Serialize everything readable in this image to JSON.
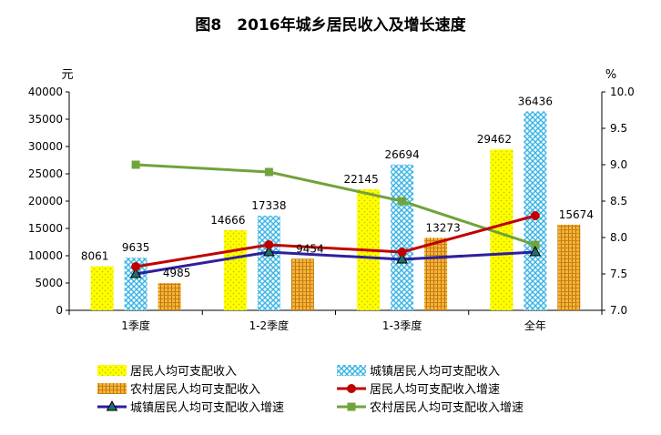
{
  "chart_data": {
    "type": "bar",
    "title": "图8　2016年城乡居民收入及增长速度",
    "ylabel_left": "元",
    "ylabel_right": "%",
    "categories": [
      "1季度",
      "1-2季度",
      "1-3季度",
      "全年"
    ],
    "ylim_left": [
      0,
      40000
    ],
    "yticks_left": [
      "0",
      "5000",
      "10000",
      "15000",
      "20000",
      "25000",
      "30000",
      "35000",
      "40000"
    ],
    "ylim_right": [
      7.0,
      10.0
    ],
    "yticks_right": [
      "7.0",
      "7.5",
      "8.0",
      "8.5",
      "9.0",
      "9.5",
      "10.0"
    ],
    "bar_series": [
      {
        "name": "居民人均可支配收入",
        "values": [
          8061,
          14666,
          22145,
          29462
        ],
        "labels": [
          "8061",
          "14666",
          "22145",
          "29462"
        ],
        "color": "#ffff00",
        "pattern_color": "#c8c800"
      },
      {
        "name": "城镇居民人均可支配收入",
        "values": [
          9635,
          17338,
          26694,
          36436
        ],
        "labels": [
          "9635",
          "17338",
          "26694",
          "36436"
        ],
        "color": "#ffffff",
        "pattern_color": "#39b4e4"
      },
      {
        "name": "农村居民人均可支配收入",
        "values": [
          4985,
          9454,
          13273,
          15674
        ],
        "labels": [
          "4985",
          "9454",
          "13273",
          "15674"
        ],
        "color": "#f7b43a",
        "pattern_color": "#b8760f"
      }
    ],
    "line_series": [
      {
        "name": "居民人均可支配收入增速",
        "values": [
          7.6,
          7.9,
          7.8,
          8.3
        ],
        "color": "#c00000",
        "marker": "circle"
      },
      {
        "name": "城镇居民人均可支配收入增速",
        "values": [
          7.5,
          7.8,
          7.7,
          7.8
        ],
        "color": "#2e1f9e",
        "marker": "triangle"
      },
      {
        "name": "农村居民人均可支配收入增速",
        "values": [
          9.0,
          8.9,
          8.5,
          7.9
        ],
        "color": "#70a33c",
        "marker": "square"
      }
    ],
    "legend_position": "bottom",
    "grid": false
  }
}
